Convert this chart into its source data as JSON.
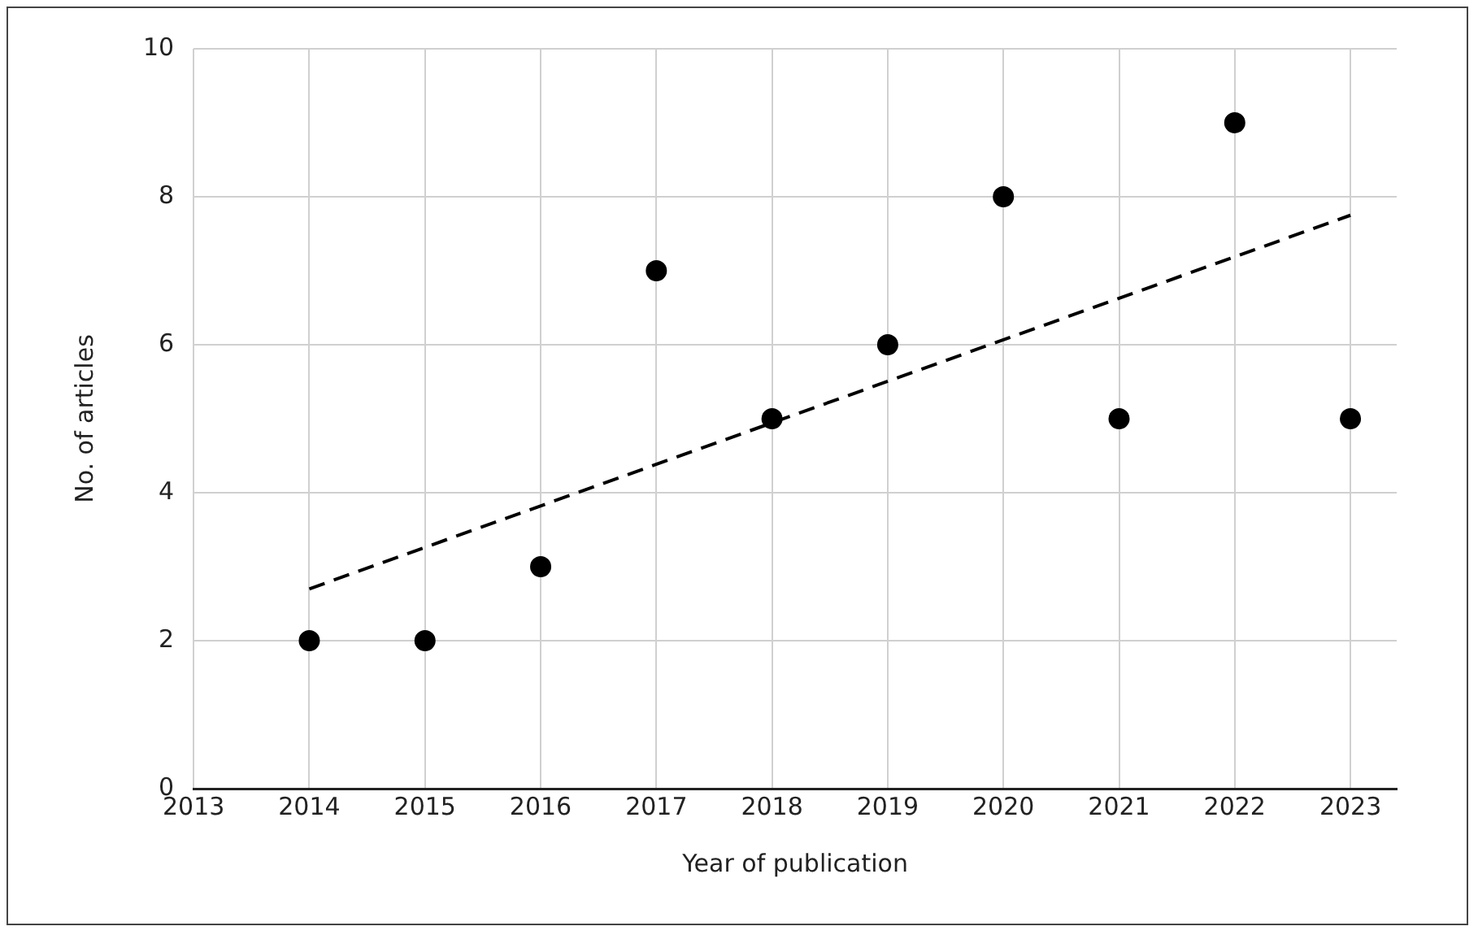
{
  "chart_data": {
    "type": "scatter",
    "xlabel": "Year of publication",
    "ylabel": "No. of articles",
    "x": [
      2014,
      2015,
      2016,
      2017,
      2018,
      2019,
      2020,
      2021,
      2022,
      2023
    ],
    "series": [
      {
        "color": "#000000",
        "values": [
          2,
          2,
          3,
          7,
          5,
          6,
          8,
          5,
          9,
          5
        ],
        "marker": "circle"
      },
      {
        "type": "line",
        "color": "#000000",
        "x": [
          2014,
          2023
        ],
        "values": [
          2.7,
          7.75
        ],
        "marker": "none",
        "line_style": "dashed"
      }
    ],
    "xlim": [
      2013,
      2023.4
    ],
    "xticks": [
      2013,
      2014,
      2015,
      2016,
      2017,
      2018,
      2019,
      2020,
      2021,
      2022,
      2023
    ],
    "ylim": [
      0,
      10
    ],
    "yticks": [
      0,
      2,
      4,
      6,
      8,
      10
    ],
    "grid": true,
    "legend": false
  }
}
